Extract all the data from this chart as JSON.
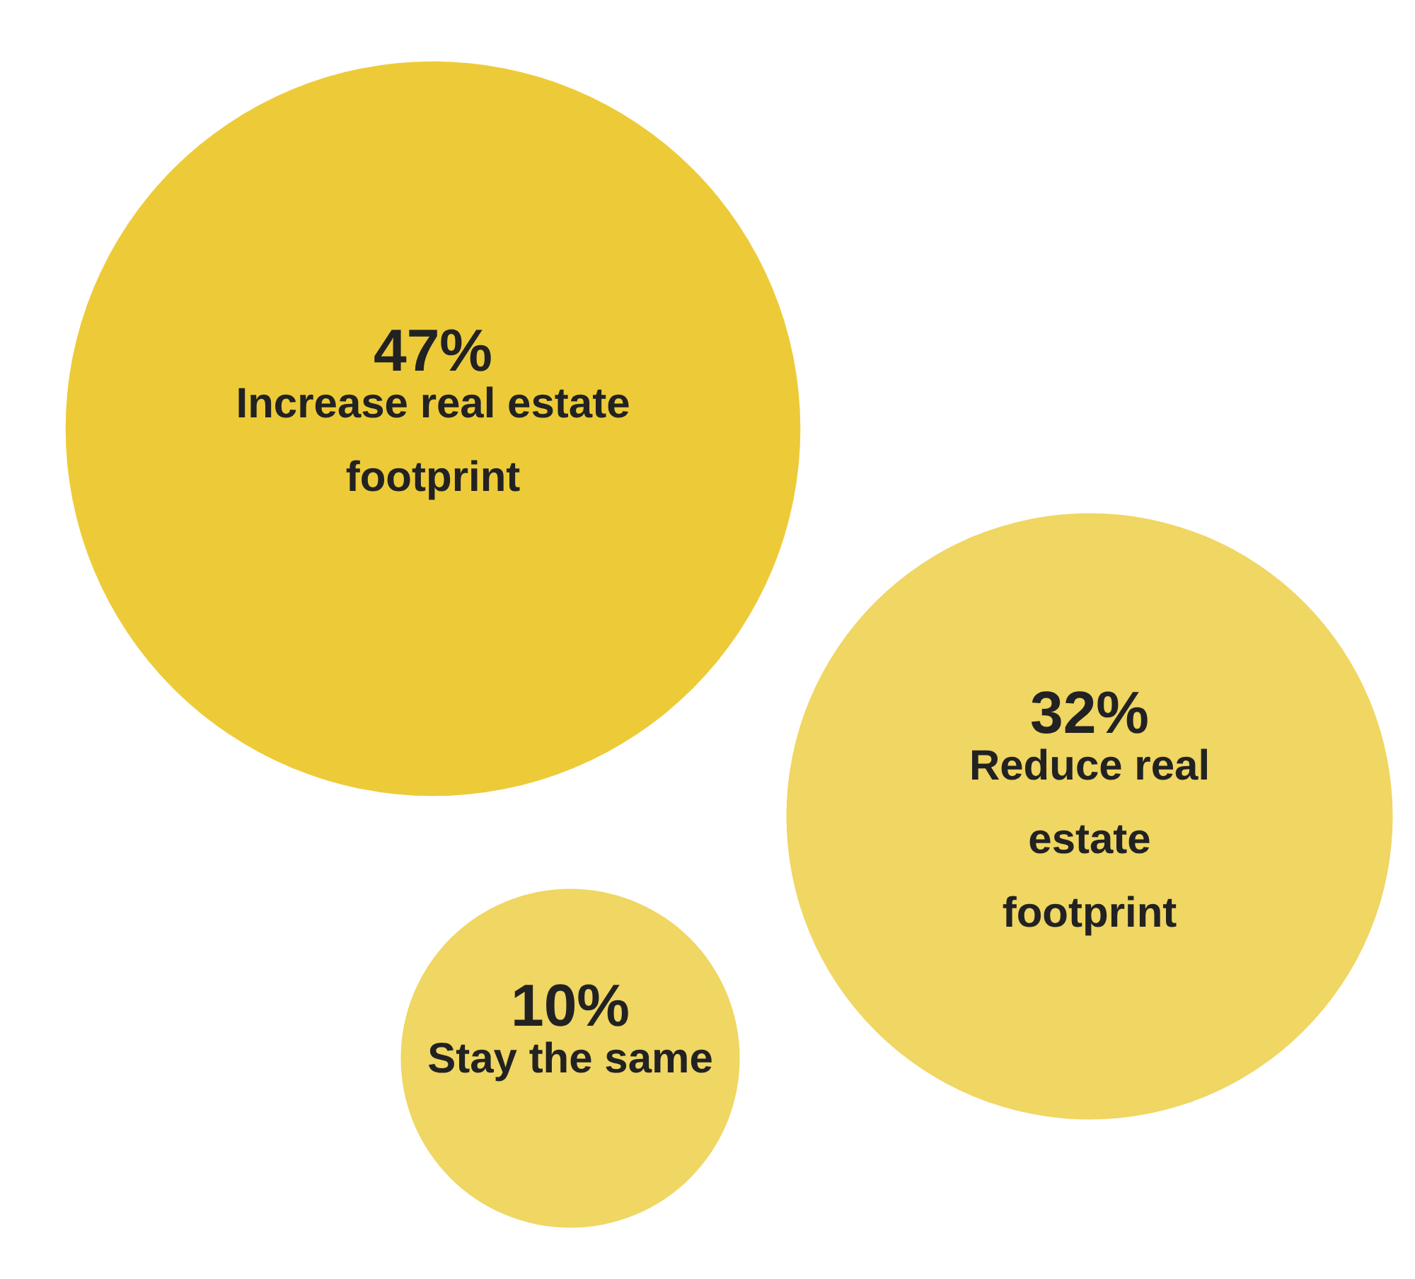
{
  "chart_data": {
    "type": "other",
    "categories": [
      "Increase real estate footprint",
      "Reduce real estate footprint",
      "Stay the same"
    ],
    "values": [
      47,
      32,
      10
    ],
    "value_labels": [
      "47%",
      "32%",
      "10%"
    ],
    "colors": [
      "#edcb38",
      "#f0d662",
      "#f0d662"
    ]
  }
}
